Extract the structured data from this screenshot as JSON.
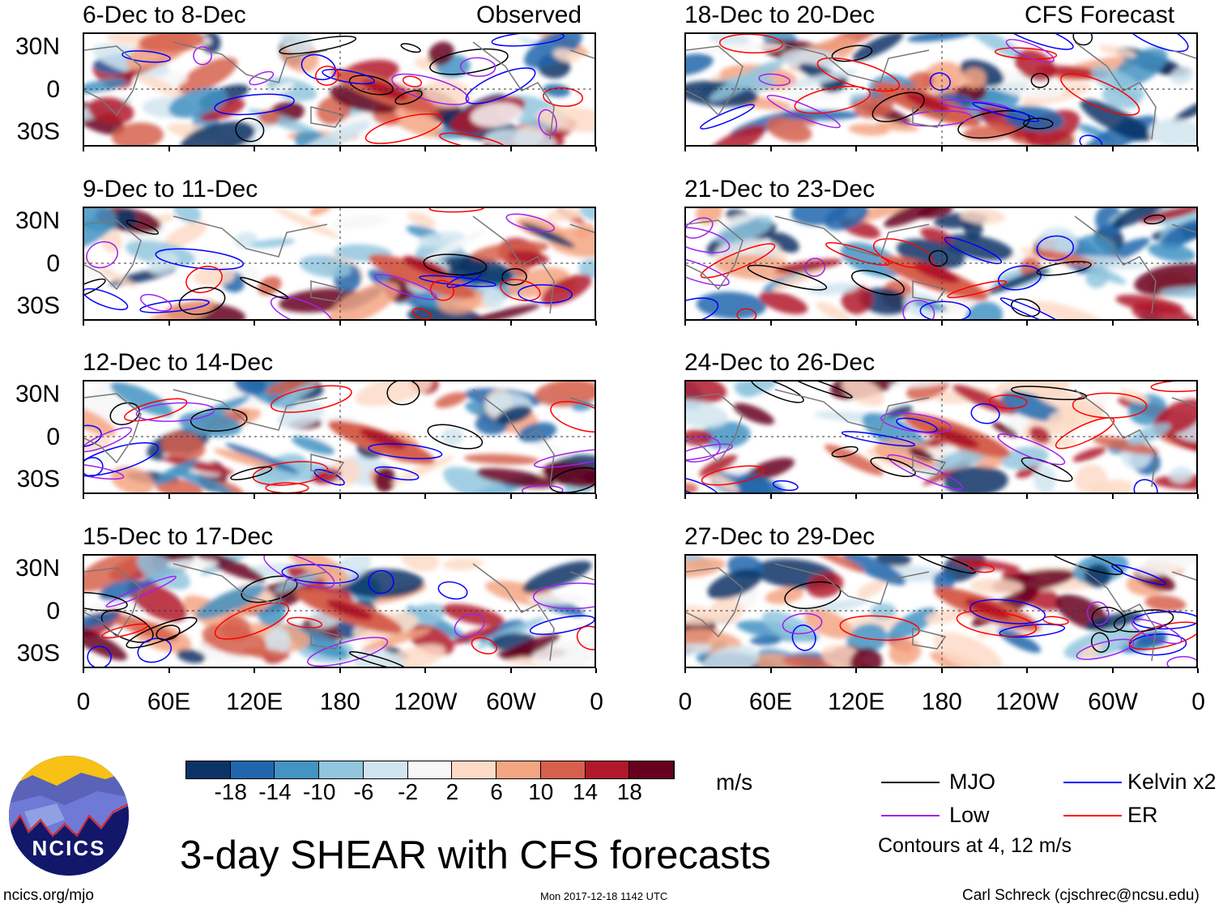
{
  "header": {
    "observed_label": "Observed",
    "forecast_label": "CFS Forecast"
  },
  "panels_left": [
    {
      "title": "6-Dec to 8-Dec"
    },
    {
      "title": "9-Dec to 11-Dec"
    },
    {
      "title": "12-Dec to 14-Dec"
    },
    {
      "title": "15-Dec to 17-Dec"
    }
  ],
  "panels_right": [
    {
      "title": "18-Dec to 20-Dec"
    },
    {
      "title": "21-Dec to 23-Dec"
    },
    {
      "title": "24-Dec to 26-Dec"
    },
    {
      "title": "27-Dec to 29-Dec"
    }
  ],
  "lat_labels": [
    "30N",
    "0",
    "30S"
  ],
  "lon_labels": [
    "0",
    "60E",
    "120E",
    "180",
    "120W",
    "60W",
    "0"
  ],
  "colorbar": {
    "colors": [
      "#0b3466",
      "#2166ac",
      "#4393c3",
      "#92c5de",
      "#d1e5f0",
      "#f7f7f7",
      "#fddbc7",
      "#f4a582",
      "#d6604d",
      "#b2182b",
      "#67001f"
    ],
    "labels": [
      "-18",
      "-14",
      "-10",
      "-6",
      "-2",
      "2",
      "6",
      "10",
      "14",
      "18"
    ],
    "units": "m/s"
  },
  "legend": {
    "items": [
      {
        "label": "MJO",
        "color": "#000000"
      },
      {
        "label": "Kelvin x2",
        "color": "#0000ff"
      },
      {
        "label": "Low",
        "color": "#a020f0"
      },
      {
        "label": "ER",
        "color": "#ff0000"
      }
    ],
    "contours_note": "Contours at 4, 12 m/s"
  },
  "title": "3-day SHEAR with CFS forecasts",
  "logo": {
    "text": "NCICS"
  },
  "footer": {
    "url": "ncics.org/mjo",
    "timestamp": "Mon 2017-12-18 1142 UTC",
    "author": "Carl Schreck (cjschrec@ncsu.edu)"
  }
}
